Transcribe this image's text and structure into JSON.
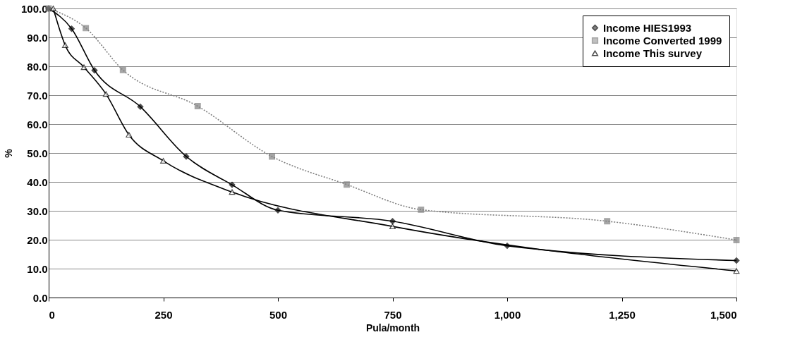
{
  "chart_data": {
    "type": "line",
    "xlabel": "Pula/month",
    "ylabel": "%",
    "xlim": [
      0,
      1500
    ],
    "ylim": [
      0,
      100
    ],
    "xticks": [
      0,
      250,
      500,
      750,
      {
        "value": 1000,
        "label": "1,000"
      },
      {
        "value": 1250,
        "label": "1,250"
      },
      {
        "value": 1500,
        "label": "1,500"
      }
    ],
    "yticks": [
      {
        "value": 0,
        "label": "0.0"
      },
      {
        "value": 10,
        "label": "10.0"
      },
      {
        "value": 20,
        "label": "20.0"
      },
      {
        "value": 30,
        "label": "30.0"
      },
      {
        "value": 40,
        "label": "40.0"
      },
      {
        "value": 50,
        "label": "50.0"
      },
      {
        "value": 60,
        "label": "60.0"
      },
      {
        "value": 70,
        "label": "70.0"
      },
      {
        "value": 80,
        "label": "80.0"
      },
      {
        "value": 90,
        "label": "90.0"
      },
      {
        "value": 100,
        "label": "100.0"
      }
    ],
    "grid": "y",
    "legend": "top right",
    "series": [
      {
        "name": "Income HIES1993",
        "color": "#000000",
        "marker": "diamond",
        "line_style": "solid",
        "x": [
          0,
          50,
          100,
          200,
          300,
          400,
          500,
          750,
          1000,
          1500
        ],
        "values": [
          100,
          93.0,
          78.6,
          66.0,
          48.8,
          39.0,
          30.2,
          26.4,
          17.9,
          12.8
        ]
      },
      {
        "name": "Income Converted 1999",
        "color": "#808080",
        "marker": "square",
        "line_style": "dotted",
        "x": [
          0,
          81,
          162,
          325,
          487,
          650,
          812,
          1218,
          1500
        ],
        "values": [
          100,
          93.2,
          78.7,
          66.2,
          48.8,
          39.1,
          30.4,
          26.4,
          19.9
        ]
      },
      {
        "name": "Income This survey",
        "color": "#000000",
        "marker": "triangle",
        "line_style": "solid",
        "x": [
          10,
          36,
          77,
          125,
          175,
          250,
          400,
          750,
          1500
        ],
        "values": [
          100,
          87.3,
          79.7,
          70.4,
          56.3,
          47.3,
          36.5,
          24.6,
          9.2
        ]
      }
    ]
  }
}
